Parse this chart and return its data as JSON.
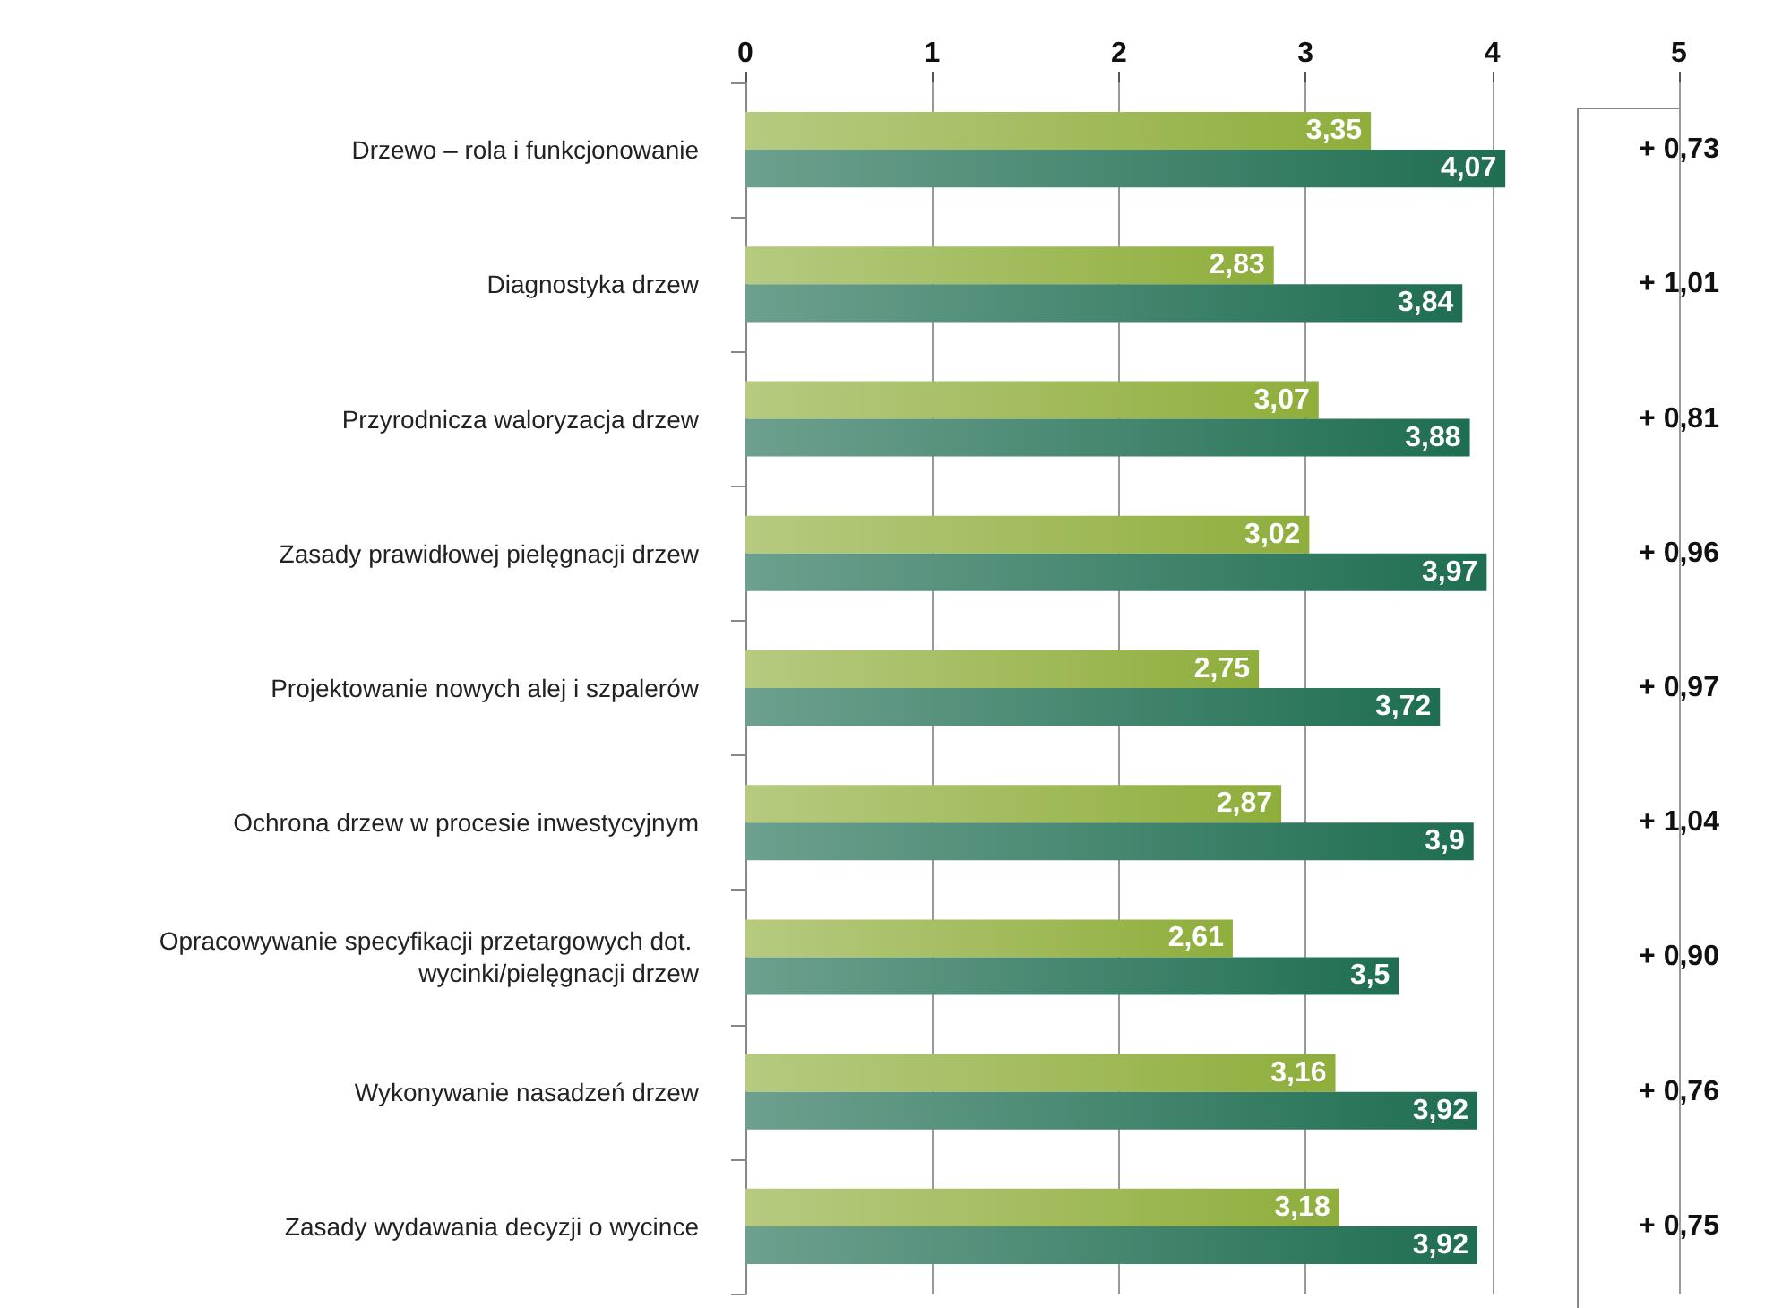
{
  "chart_data": {
    "type": "bar",
    "orientation": "horizontal",
    "categories": [
      "Drzewo – rola i funkcjonowanie",
      "Diagnostyka drzew",
      "Przyrodnicza waloryzacja drzew",
      "Zasady prawidłowej pielęgnacji drzew",
      "Projektowanie nowych alej i szpalerów",
      "Ochrona drzew w procesie inwestycyjnym",
      "Opracowywanie specyfikacji przetargowych dot. wycinki/pielęgnacji drzew",
      "Wykonywanie nasadzeń drzew",
      "Zasady wydawania decyzji o wycince"
    ],
    "series": [
      {
        "color": "#8fae3c",
        "values": [
          3.35,
          2.83,
          3.07,
          3.02,
          2.75,
          2.87,
          2.61,
          3.16,
          3.18
        ],
        "value_labels": [
          "3,35",
          "2,83",
          "3,07",
          "3,02",
          "2,75",
          "2,87",
          "2,61",
          "3,16",
          "3,18"
        ]
      },
      {
        "color": "#1f6e52",
        "values": [
          4.07,
          3.84,
          3.88,
          3.97,
          3.72,
          3.9,
          3.5,
          3.92,
          3.92
        ],
        "value_labels": [
          "4,07",
          "3,84",
          "3,88",
          "3,97",
          "3,72",
          "3,9",
          "3,5",
          "3,92",
          "3,92"
        ]
      }
    ],
    "xlim": [
      0,
      5
    ],
    "xticks": [
      0,
      1,
      2,
      3,
      4,
      5
    ],
    "grid": "x",
    "annotations": [
      "+ 0,73",
      "+ 1,01",
      "+ 0,81",
      "+ 0,96",
      "+ 0,97",
      "+ 1,04",
      "+ 0,90",
      "+ 0,76",
      "+ 0,75"
    ]
  }
}
